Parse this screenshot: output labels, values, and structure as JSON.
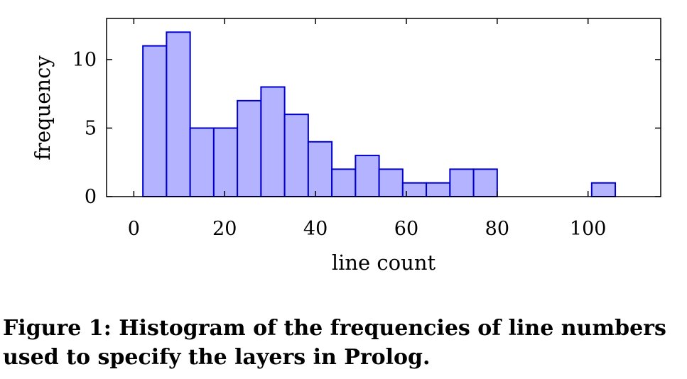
{
  "chart_data": {
    "type": "bar",
    "bin_edges": [
      2,
      7.2,
      12.4,
      17.6,
      22.8,
      28.0,
      33.2,
      38.4,
      43.6,
      48.8,
      54.0,
      59.2,
      64.4,
      69.6,
      74.8,
      80.0,
      85.2,
      90.4,
      95.6,
      100.8,
      106.0
    ],
    "values": [
      11,
      12,
      5,
      5,
      7,
      8,
      6,
      4,
      2,
      3,
      2,
      1,
      1,
      2,
      2,
      0,
      0,
      0,
      0,
      1
    ],
    "xlabel": "line count",
    "ylabel": "frequency",
    "xlim": [
      -6,
      116
    ],
    "ylim": [
      0,
      13
    ],
    "xticks": [
      0,
      20,
      40,
      60,
      80,
      100
    ],
    "yticks": [
      0,
      5,
      10
    ],
    "grid": false,
    "bar_fill": "#b3b3ff",
    "bar_stroke": "#0000cc"
  },
  "caption": "Figure 1: Histogram of the frequencies of line numbers used to specify the layers in Prolog."
}
